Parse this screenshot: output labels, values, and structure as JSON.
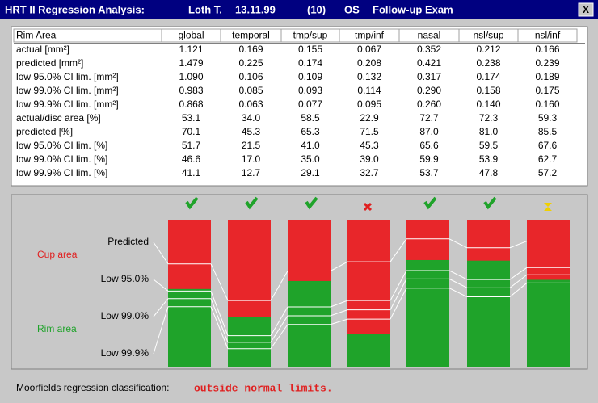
{
  "window": {
    "title_parts": [
      "HRT II Regression Analysis:",
      "Loth T.",
      "13.11.99",
      "(10)",
      "OS",
      "Follow-up Exam"
    ],
    "close": "X"
  },
  "table": {
    "header": [
      "Rim Area",
      "global",
      "temporal",
      "tmp/sup",
      "tmp/inf",
      "nasal",
      "nsl/sup",
      "nsl/inf"
    ],
    "rows": [
      [
        "actual [mm²]",
        "1.121",
        "0.169",
        "0.155",
        "0.067",
        "0.352",
        "0.212",
        "0.166"
      ],
      [
        "predicted [mm²]",
        "1.479",
        "0.225",
        "0.174",
        "0.208",
        "0.421",
        "0.238",
        "0.239"
      ],
      [
        "low 95.0% CI lim. [mm²]",
        "1.090",
        "0.106",
        "0.109",
        "0.132",
        "0.317",
        "0.174",
        "0.189"
      ],
      [
        "low 99.0% CI lim. [mm²]",
        "0.983",
        "0.085",
        "0.093",
        "0.114",
        "0.290",
        "0.158",
        "0.175"
      ],
      [
        "low 99.9% CI lim. [mm²]",
        "0.868",
        "0.063",
        "0.077",
        "0.095",
        "0.260",
        "0.140",
        "0.160"
      ],
      [
        "actual/disc area [%]",
        "53.1",
        "34.0",
        "58.5",
        "22.9",
        "72.7",
        "72.3",
        "59.3"
      ],
      [
        "predicted [%]",
        "70.1",
        "45.3",
        "65.3",
        "71.5",
        "87.0",
        "81.0",
        "85.5"
      ],
      [
        "low 95.0% CI lim. [%]",
        "51.7",
        "21.5",
        "41.0",
        "45.3",
        "65.6",
        "59.5",
        "67.6"
      ],
      [
        "low 99.0% CI lim. [%]",
        "46.6",
        "17.0",
        "35.0",
        "39.0",
        "59.9",
        "53.9",
        "62.7"
      ],
      [
        "low 99.9% CI lim. [%]",
        "41.1",
        "12.7",
        "29.1",
        "32.7",
        "53.7",
        "47.8",
        "57.2"
      ]
    ]
  },
  "graphic": {
    "levels": [
      "Predicted",
      "Low 95.0%",
      "Low 99.0%",
      "Low 99.9%"
    ],
    "cup_label": "Cup area",
    "rim_label": "Rim area"
  },
  "footer": {
    "label": "Moorfields regression classification:",
    "result": "outside normal limits."
  }
}
